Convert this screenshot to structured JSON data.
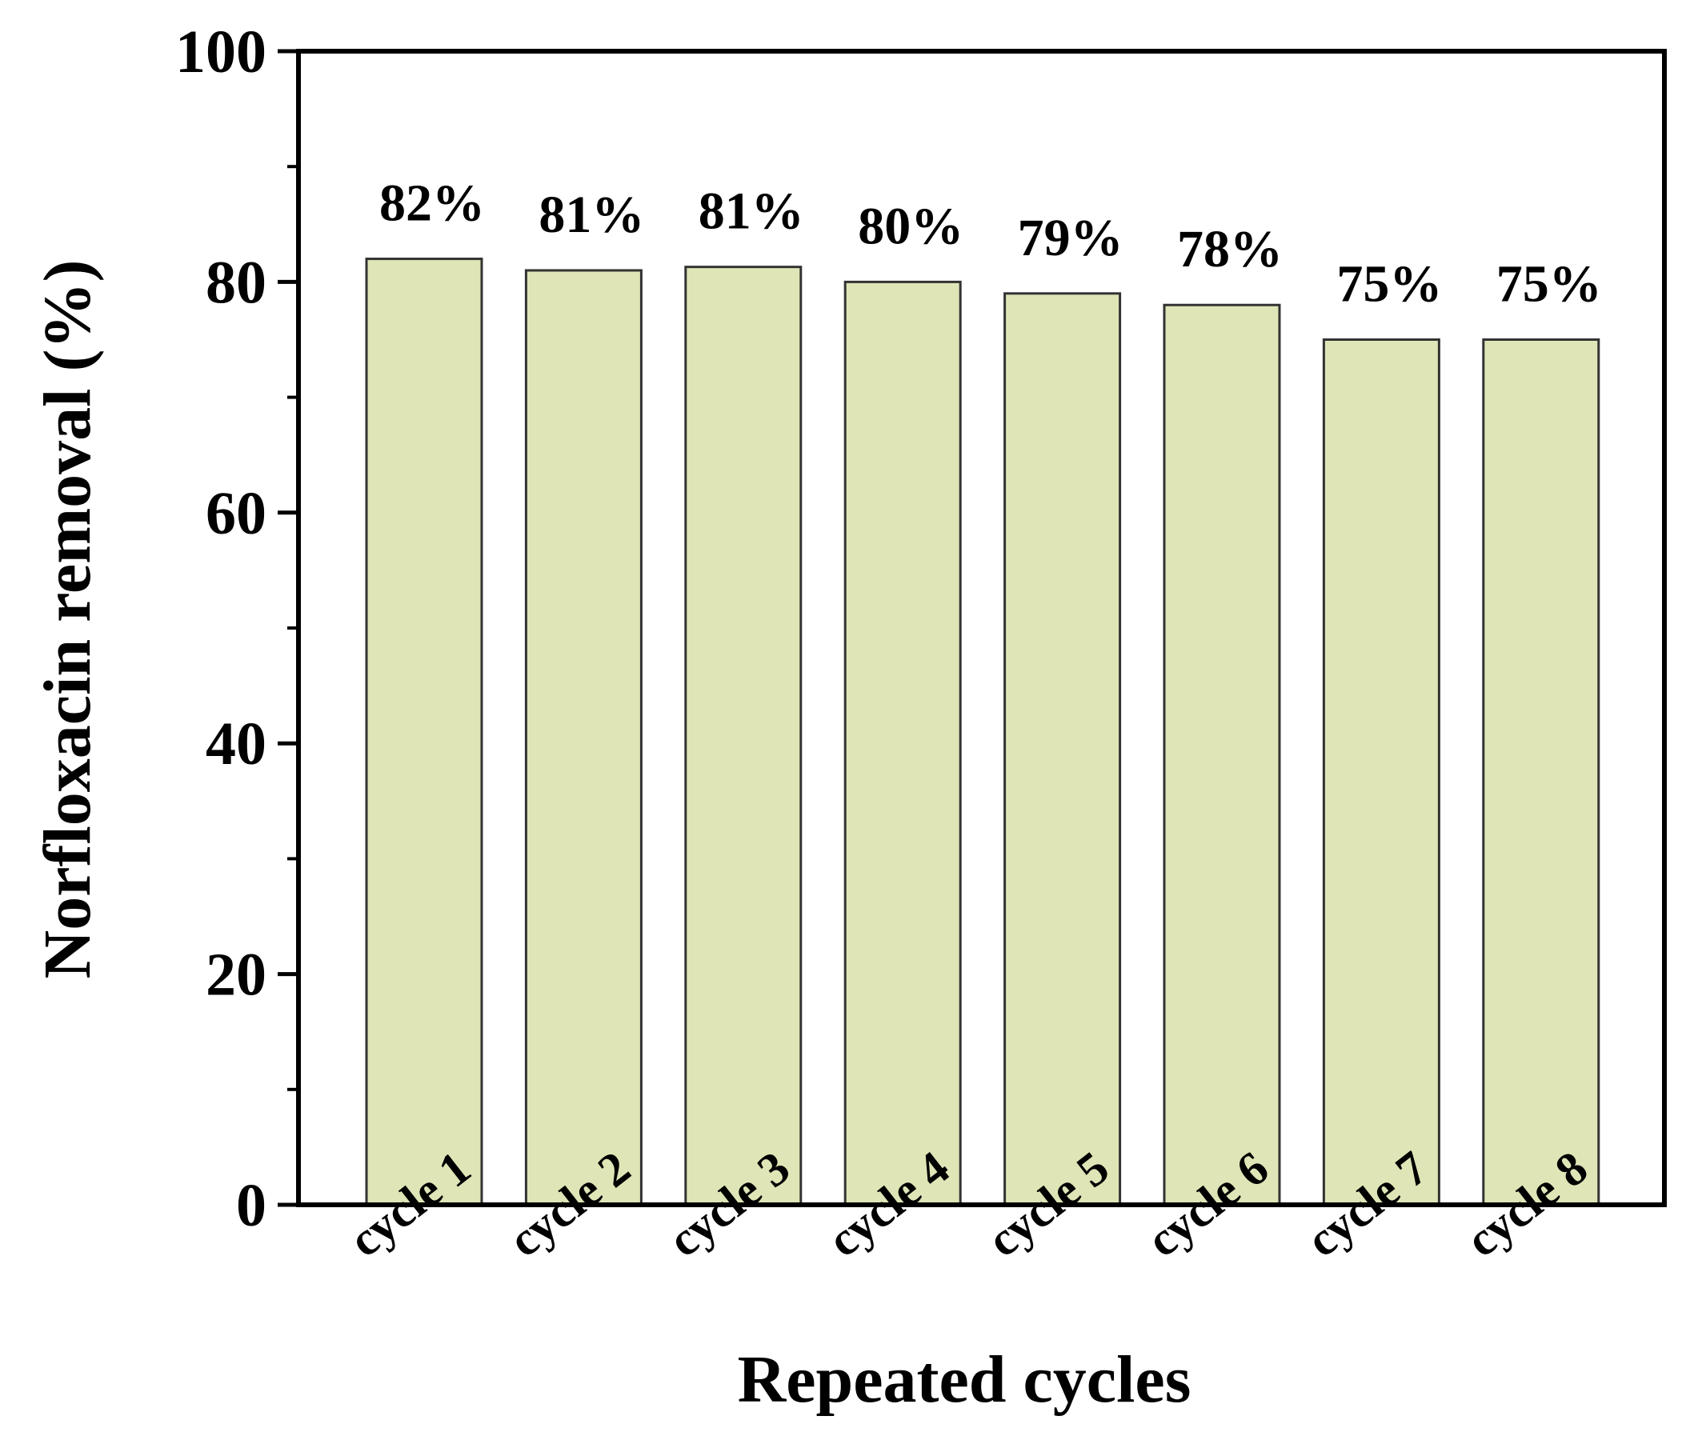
{
  "chart_data": {
    "type": "bar",
    "categories": [
      "cycle 1",
      "cycle 2",
      "cycle 3",
      "cycle 4",
      "cycle 5",
      "cycle 6",
      "cycle 7",
      "cycle 8"
    ],
    "values": [
      82,
      81,
      81.3,
      80,
      79,
      78,
      75,
      75
    ],
    "data_labels": [
      "82%",
      "81%",
      "81%",
      "80%",
      "79%",
      "78%",
      "75%",
      "75%"
    ],
    "title": "",
    "xlabel": "Repeated cycles",
    "ylabel": "Norfloxacin removal (%)",
    "ylim": [
      0,
      100
    ],
    "yticks": [
      0,
      20,
      40,
      60,
      80,
      100
    ],
    "ytick_labels": [
      "0",
      "20",
      "40",
      "60",
      "80",
      "100"
    ],
    "minor_tick_step": 10,
    "grid": false,
    "legend": "none",
    "colors": {
      "bar_fill": "#dfe5b6",
      "bar_stroke": "#333333",
      "axis": "#000000",
      "text": "#000000"
    }
  }
}
